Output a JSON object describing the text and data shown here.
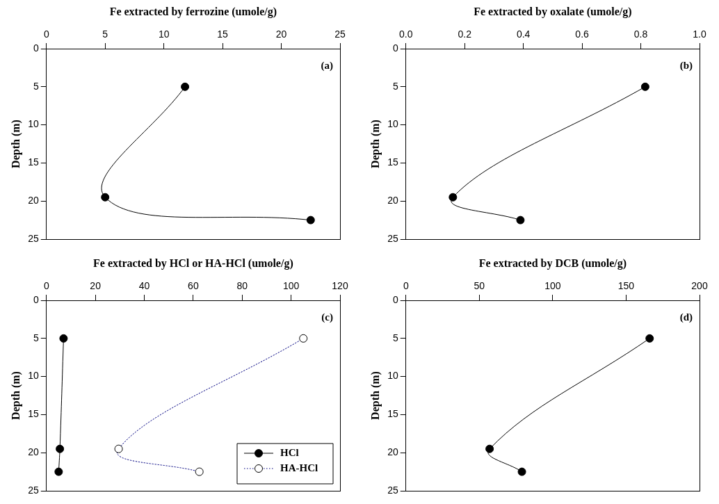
{
  "chart_data": [
    {
      "type": "line",
      "xlabel": "Fe extracted by ferrozine (umole/g)",
      "ylabel": "Depth (m)",
      "annotations": [
        "(a)"
      ],
      "xlim": [
        0,
        25
      ],
      "xticks": [
        0,
        5,
        10,
        15,
        20,
        25
      ],
      "ylim": [
        25,
        0
      ],
      "yticks": [
        0,
        5,
        10,
        15,
        20,
        25
      ],
      "marker": "circle",
      "line_style": "solid",
      "grid": false,
      "legend": false,
      "series": [
        {
          "color": "#000000",
          "x": [
            11.8,
            5.0,
            22.5
          ],
          "values": [
            5,
            19.5,
            22.5
          ]
        }
      ]
    },
    {
      "type": "line",
      "xlabel": "Fe extracted by oxalate (umole/g)",
      "ylabel": "Depth (m)",
      "annotations": [
        "(b)"
      ],
      "xlim": [
        0,
        1
      ],
      "xticks": [
        {
          "value": 0,
          "label": "0.0"
        },
        {
          "value": 0.2,
          "label": "0.2"
        },
        {
          "value": 0.4,
          "label": "0.4"
        },
        {
          "value": 0.6,
          "label": "0.6"
        },
        {
          "value": 0.8,
          "label": "0.8"
        },
        {
          "value": 1,
          "label": "1.0"
        }
      ],
      "ylim": [
        25,
        0
      ],
      "yticks": [
        0,
        5,
        10,
        15,
        20,
        25
      ],
      "marker": "circle",
      "line_style": "solid",
      "grid": false,
      "legend": false,
      "series": [
        {
          "color": "#000000",
          "x": [
            0.815,
            0.16,
            0.39
          ],
          "values": [
            5,
            19.5,
            22.5
          ]
        }
      ]
    },
    {
      "type": "line",
      "xlabel": "Fe extracted by HCl or HA-HCl (umole/g)",
      "ylabel": "Depth (m)",
      "annotations": [
        "(c)"
      ],
      "xlim": [
        0,
        120
      ],
      "xticks": [
        0,
        20,
        40,
        60,
        80,
        100,
        120
      ],
      "ylim": [
        25,
        0
      ],
      "yticks": [
        0,
        5,
        10,
        15,
        20,
        25
      ],
      "marker": "circle",
      "grid": false,
      "legend": "bottom right",
      "series": [
        {
          "name": "HCl",
          "color": "#000000",
          "line_style": "solid",
          "x": [
            7,
            5.5,
            5
          ],
          "values": [
            5,
            19.5,
            22.5
          ]
        },
        {
          "name": "HA-HCl",
          "color": "#000080",
          "line_style": "dotted",
          "x": [
            105,
            29.5,
            62.5
          ],
          "values": [
            5,
            19.5,
            22.5
          ]
        }
      ]
    },
    {
      "type": "line",
      "xlabel": "Fe extracted by DCB (umole/g)",
      "ylabel": "Depth (m)",
      "annotations": [
        "(d)"
      ],
      "xlim": [
        0,
        200
      ],
      "xticks": [
        0,
        50,
        100,
        150,
        200
      ],
      "ylim": [
        25,
        0
      ],
      "yticks": [
        0,
        5,
        10,
        15,
        20,
        25
      ],
      "marker": "circle",
      "line_style": "solid",
      "grid": false,
      "legend": false,
      "series": [
        {
          "color": "#000000",
          "x": [
            166,
            57,
            79
          ],
          "values": [
            5,
            19.5,
            22.5
          ]
        }
      ]
    }
  ]
}
